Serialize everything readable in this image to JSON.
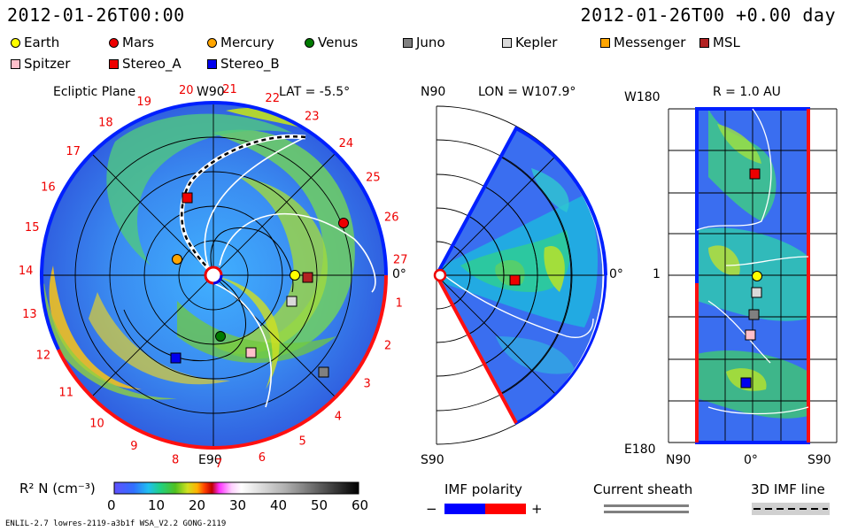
{
  "header": {
    "left_time": "2012-01-26T00:00",
    "right_time": "2012-01-26T00 +0.00 day"
  },
  "legend": [
    {
      "label": "Earth",
      "color": "#ffff00",
      "shape": "circle"
    },
    {
      "label": "Mars",
      "color": "#ee0000",
      "shape": "circle"
    },
    {
      "label": "Mercury",
      "color": "#ffa500",
      "shape": "circle"
    },
    {
      "label": "Venus",
      "color": "#007a00",
      "shape": "circle"
    },
    {
      "label": "Juno",
      "color": "#808080",
      "shape": "square"
    },
    {
      "label": "Kepler",
      "color": "#d9d9d9",
      "shape": "square"
    },
    {
      "label": "Messenger",
      "color": "#ffa500",
      "shape": "square"
    },
    {
      "label": "MSL",
      "color": "#b22222",
      "shape": "square"
    },
    {
      "label": "Spitzer",
      "color": "#ffc0cb",
      "shape": "square"
    },
    {
      "label": "Stereo_A",
      "color": "#ee0000",
      "shape": "square"
    },
    {
      "label": "Stereo_B",
      "color": "#0000ee",
      "shape": "square"
    }
  ],
  "panels": {
    "ecliptic": {
      "title": "Ecliptic Plane",
      "top": "W90",
      "bottom": "E90",
      "lat": "LAT = -5.5°",
      "right": "0°",
      "sectors": [
        "1",
        "2",
        "3",
        "4",
        "5",
        "6",
        "7",
        "8",
        "9",
        "10",
        "11",
        "12",
        "13",
        "14",
        "15",
        "16",
        "17",
        "18",
        "19",
        "20",
        "21",
        "22",
        "23",
        "24",
        "25",
        "26",
        "27"
      ]
    },
    "meridional": {
      "lon": "LON = W107.9°",
      "top": "N90",
      "bottom": "S90",
      "right": "0°"
    },
    "radial": {
      "r": "R = 1.0 AU",
      "top_left": "W180",
      "bottom_left": "E180",
      "mid_left": "1",
      "x_left": "N90",
      "x_mid": "0°",
      "x_right": "S90"
    }
  },
  "colorbar": {
    "label": "R² N (cm⁻³)",
    "ticks": [
      "0",
      "10",
      "20",
      "30",
      "40",
      "50",
      "60"
    ]
  },
  "legends2": {
    "imf_title": "IMF polarity",
    "minus": "−",
    "plus": "+",
    "sheath": "Current sheath",
    "imf3d": "3D IMF line"
  },
  "footer": {
    "left": "ENLIL-2.7 lowres-2119-a3b1f WSA_V2.2 GONG-2119"
  },
  "chart_data": [
    {
      "type": "heatmap",
      "title": "Ecliptic Plane",
      "quantity": "R² N (cm⁻³)",
      "colorbar_range": [
        0,
        60
      ],
      "bodies": [
        {
          "name": "Earth",
          "theta_deg": 0,
          "r_au": 1.0
        },
        {
          "name": "Mars",
          "theta_deg": 40,
          "r_au": 1.55
        },
        {
          "name": "Mercury",
          "theta_deg": 172,
          "r_au": 0.42
        },
        {
          "name": "Venus",
          "theta_deg": 255,
          "r_au": 0.71
        },
        {
          "name": "Stereo_A",
          "theta_deg": 108,
          "r_au": 0.95
        },
        {
          "name": "Stereo_B",
          "theta_deg": 236,
          "r_au": 1.02
        },
        {
          "name": "Juno",
          "theta_deg": 324,
          "r_au": 1.68
        },
        {
          "name": "Kepler",
          "theta_deg": 345,
          "r_au": 0.98
        },
        {
          "name": "MSL",
          "theta_deg": 1,
          "r_au": 1.11
        },
        {
          "name": "Spitzer",
          "theta_deg": 302,
          "r_au": 0.96
        }
      ]
    }
  ]
}
